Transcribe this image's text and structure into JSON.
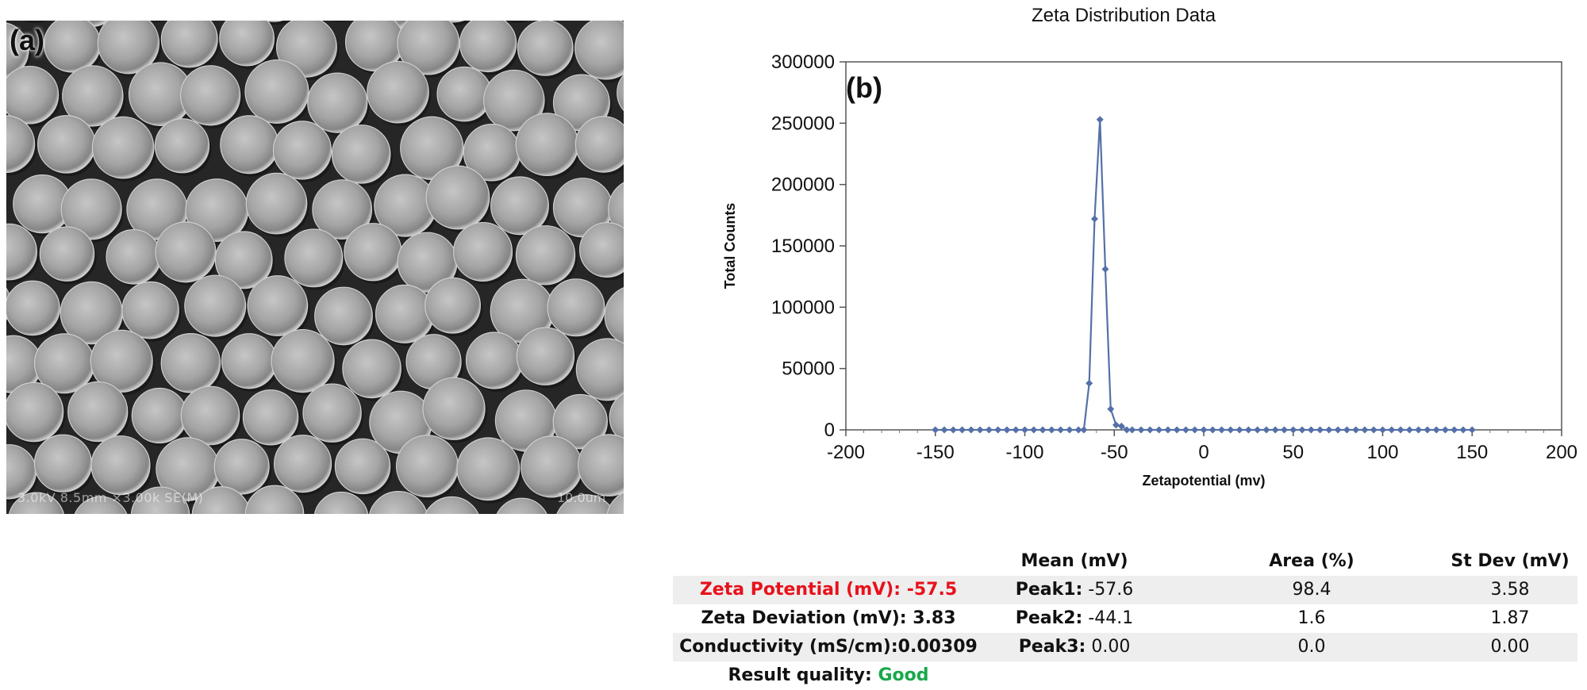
{
  "panel_a": {
    "label": "(a)",
    "sem_info": "3.0kV 8.5mm ×3.00k SE(M)",
    "scale_bar": "10.0um"
  },
  "panel_b": {
    "label": "(b)"
  },
  "chart_data": {
    "type": "line",
    "title": "Zeta Distribution Data",
    "xlabel": "Zetapotential (mv)",
    "ylabel": "Total Counts",
    "xlim": [
      -200,
      200
    ],
    "ylim": [
      0,
      300000
    ],
    "xticks": [
      -200,
      -150,
      -100,
      -50,
      0,
      50,
      100,
      150,
      200
    ],
    "yticks": [
      0,
      50000,
      100000,
      150000,
      200000,
      250000,
      300000
    ],
    "grid": false,
    "series": [
      {
        "color": "#5570a8",
        "x": [
          -150,
          -145,
          -140,
          -135,
          -130,
          -125,
          -120,
          -115,
          -110,
          -105,
          -100,
          -95,
          -90,
          -85,
          -80,
          -75,
          -70,
          -67,
          -64,
          -61,
          -58,
          -55,
          -52,
          -49,
          -46,
          -43,
          -40,
          -35,
          -30,
          -25,
          -20,
          -15,
          -10,
          -5,
          0,
          5,
          10,
          15,
          20,
          25,
          30,
          35,
          40,
          45,
          50,
          55,
          60,
          65,
          70,
          75,
          80,
          85,
          90,
          95,
          100,
          105,
          110,
          115,
          120,
          125,
          130,
          135,
          140,
          145,
          150
        ],
        "y": [
          0,
          0,
          0,
          0,
          0,
          0,
          0,
          0,
          0,
          0,
          0,
          0,
          0,
          0,
          0,
          0,
          0,
          0,
          38000,
          172000,
          253000,
          131000,
          17000,
          4000,
          3000,
          0,
          0,
          0,
          0,
          0,
          0,
          0,
          0,
          0,
          0,
          0,
          0,
          0,
          0,
          0,
          0,
          0,
          0,
          0,
          0,
          0,
          0,
          0,
          0,
          0,
          0,
          0,
          0,
          0,
          0,
          0,
          0,
          0,
          0,
          0,
          0,
          0,
          0,
          0,
          0
        ]
      }
    ]
  },
  "results": {
    "headers": {
      "mean": "Mean (mV)",
      "area": "Area (%)",
      "stdev": "St Dev (mV)"
    },
    "zeta_potential": {
      "label": "Zeta Potential (mV):",
      "value": "-57.5"
    },
    "zeta_deviation": {
      "label": "Zeta Deviation (mV):",
      "value": "3.83"
    },
    "conductivity": {
      "label": "Conductivity (mS/cm):",
      "value": "0.00309"
    },
    "result_quality": {
      "label": "Result quality:",
      "value": "Good"
    },
    "peaks": [
      {
        "name": "Peak1:",
        "mean": "-57.6",
        "area": "98.4",
        "stdev": "3.58"
      },
      {
        "name": "Peak2:",
        "mean": "-44.1",
        "area": "1.6",
        "stdev": "1.87"
      },
      {
        "name": "Peak3:",
        "mean": "0.00",
        "area": "0.0",
        "stdev": "0.00"
      }
    ],
    "colors": {
      "zeta_potential": "#e8111b",
      "quality_good": "#18a84a",
      "row_shade": "#eeeeee"
    }
  }
}
